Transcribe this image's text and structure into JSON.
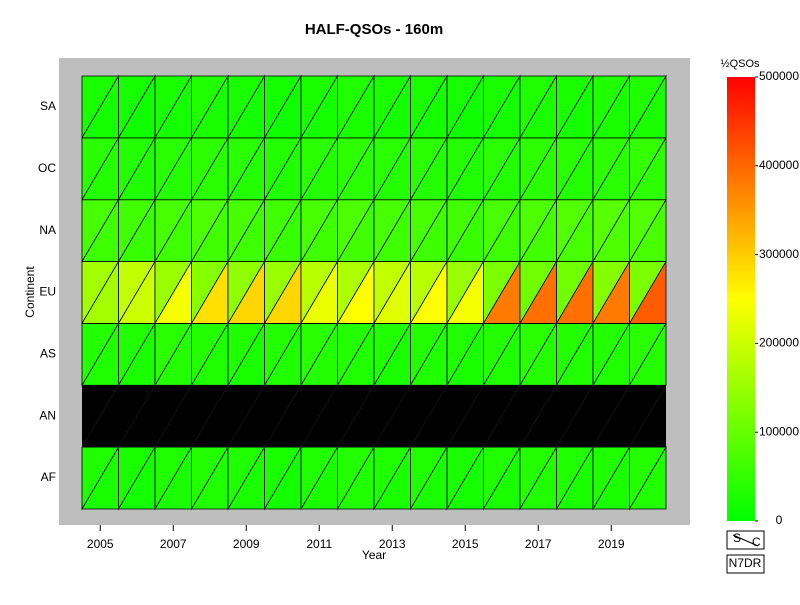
{
  "chart_data": {
    "type": "heatmap",
    "title": "HALF-QSOs - 160m",
    "x_label": "Year",
    "y_label": "Continent",
    "x": [
      2005,
      2006,
      2007,
      2008,
      2009,
      2010,
      2011,
      2012,
      2013,
      2014,
      2015,
      2016,
      2017,
      2018,
      2019,
      2020
    ],
    "xticks": [
      2005,
      2007,
      2009,
      2011,
      2013,
      2015,
      2017,
      2019
    ],
    "categories": [
      "AF",
      "AN",
      "AS",
      "EU",
      "NA",
      "OC",
      "SA"
    ],
    "upper": [
      [
        30000,
        25000,
        30000,
        35000,
        30000,
        25000,
        30000,
        35000,
        30000,
        30000,
        25000,
        30000,
        35000,
        30000,
        30000,
        35000
      ],
      [
        null,
        null,
        null,
        null,
        null,
        null,
        null,
        null,
        null,
        null,
        null,
        null,
        null,
        null,
        null,
        null
      ],
      [
        35000,
        30000,
        40000,
        35000,
        30000,
        35000,
        40000,
        35000,
        30000,
        35000,
        30000,
        35000,
        40000,
        35000,
        35000,
        40000
      ],
      [
        160000,
        190000,
        150000,
        130000,
        140000,
        150000,
        180000,
        170000,
        190000,
        180000,
        150000,
        120000,
        110000,
        110000,
        130000,
        120000
      ],
      [
        70000,
        65000,
        70000,
        75000,
        70000,
        65000,
        70000,
        75000,
        70000,
        70000,
        65000,
        70000,
        75000,
        80000,
        85000,
        80000
      ],
      [
        40000,
        35000,
        40000,
        45000,
        40000,
        35000,
        40000,
        45000,
        40000,
        40000,
        35000,
        40000,
        45000,
        40000,
        45000,
        50000
      ],
      [
        25000,
        20000,
        25000,
        30000,
        25000,
        20000,
        25000,
        30000,
        25000,
        25000,
        20000,
        25000,
        30000,
        25000,
        30000,
        30000
      ]
    ],
    "lower": [
      [
        25000,
        20000,
        25000,
        30000,
        25000,
        20000,
        25000,
        30000,
        25000,
        25000,
        20000,
        25000,
        30000,
        25000,
        25000,
        30000
      ],
      [
        null,
        null,
        null,
        null,
        null,
        null,
        null,
        null,
        null,
        null,
        null,
        null,
        null,
        null,
        null,
        null
      ],
      [
        30000,
        25000,
        35000,
        30000,
        25000,
        30000,
        35000,
        30000,
        25000,
        30000,
        25000,
        30000,
        35000,
        30000,
        30000,
        35000
      ],
      [
        160000,
        200000,
        240000,
        280000,
        290000,
        290000,
        230000,
        250000,
        220000,
        250000,
        240000,
        380000,
        390000,
        390000,
        380000,
        410000
      ],
      [
        60000,
        55000,
        60000,
        65000,
        60000,
        55000,
        60000,
        65000,
        60000,
        60000,
        55000,
        60000,
        65000,
        70000,
        75000,
        70000
      ],
      [
        35000,
        30000,
        35000,
        40000,
        35000,
        30000,
        35000,
        40000,
        35000,
        35000,
        30000,
        35000,
        40000,
        35000,
        40000,
        45000
      ],
      [
        20000,
        15000,
        20000,
        25000,
        20000,
        15000,
        20000,
        25000,
        20000,
        20000,
        15000,
        20000,
        25000,
        20000,
        25000,
        25000
      ]
    ],
    "colorbar": {
      "label": "½QSOs",
      "lim": [
        0,
        500000
      ],
      "ticks": [
        0,
        100000,
        200000,
        300000,
        400000,
        500000
      ],
      "colors": [
        "#00ff00",
        "#ffff00",
        "#ff0000"
      ]
    },
    "missing_color": "#000000",
    "background": "#bebebe",
    "footer": {
      "left": "S",
      "right": "C",
      "credit": "N7DR"
    }
  }
}
